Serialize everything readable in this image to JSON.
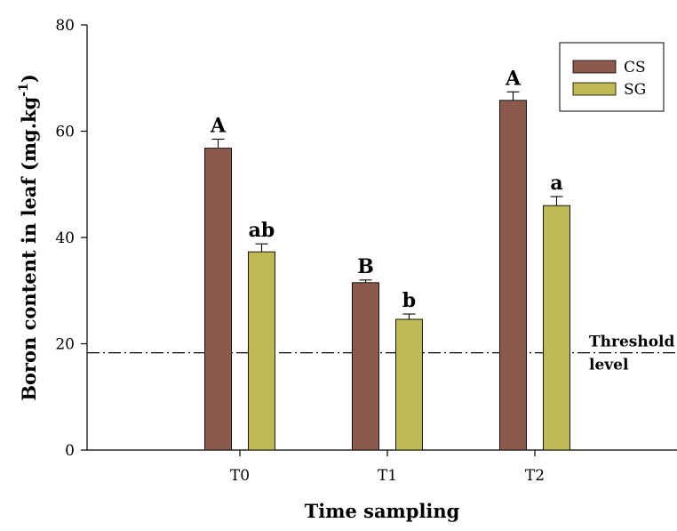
{
  "chart_data": {
    "type": "bar",
    "title": "",
    "xlabel": "Time sampling",
    "ylabel": "Boron content in leaf (mg.kg",
    "ylabel_superscript": "-1",
    "ylabel_suffix": ")",
    "categories": [
      "T0",
      "T1",
      "T2"
    ],
    "ylim": [
      0,
      80
    ],
    "yticks": [
      0,
      20,
      40,
      60,
      80
    ],
    "grid": false,
    "legend_position": "top-right",
    "series": [
      {
        "name": "CS",
        "color": "#8B5A4D",
        "values": [
          56.8,
          31.5,
          65.8
        ],
        "errors": [
          1.7,
          0.5,
          1.6
        ],
        "labels": [
          "A",
          "B",
          "A"
        ]
      },
      {
        "name": "SG",
        "color": "#BDBA53",
        "values": [
          37.3,
          24.6,
          46.0
        ],
        "errors": [
          1.5,
          1.0,
          1.7
        ],
        "labels": [
          "ab",
          "b",
          "a"
        ]
      }
    ],
    "threshold": {
      "value": 18.3,
      "style": "dash-dot",
      "label_line1": "Threshold",
      "label_line2": "level"
    }
  }
}
